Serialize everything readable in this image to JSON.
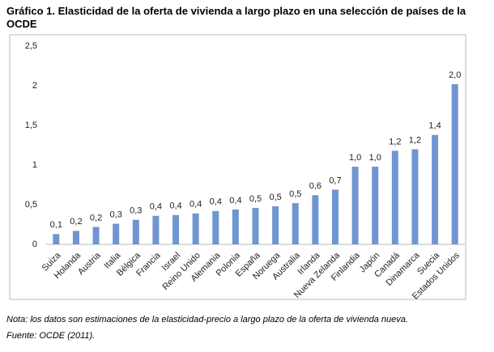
{
  "chart_data": {
    "type": "bar",
    "title": "Gráfico 1. Elasticidad de la oferta de vivienda a largo plazo en una selección de países de la OCDE",
    "categories": [
      "Suiza",
      "Holanda",
      "Austria",
      "Italia",
      "Bélgica",
      "Francia",
      "Israel",
      "Reino Unido",
      "Alemania",
      "Polonia",
      "España",
      "Noruega",
      "Australia",
      "Irlanda",
      "Nueva Zelanda",
      "Finlandia",
      "Japón",
      "Canadá",
      "Dinamarca",
      "Suecia",
      "Estados Unidos"
    ],
    "values": [
      0.13,
      0.17,
      0.22,
      0.26,
      0.31,
      0.36,
      0.37,
      0.39,
      0.42,
      0.44,
      0.46,
      0.48,
      0.52,
      0.62,
      0.69,
      0.98,
      0.98,
      1.18,
      1.2,
      1.38,
      2.02
    ],
    "value_labels": [
      "0,1",
      "0,2",
      "0,2",
      "0,3",
      "0,3",
      "0,4",
      "0,4",
      "0,4",
      "0,4",
      "0,4",
      "0,5",
      "0,5",
      "0,5",
      "0,6",
      "0,7",
      "1,0",
      "1,0",
      "1,2",
      "1,2",
      "1,4",
      "2,0"
    ],
    "color": "#6f96d1",
    "ylim": [
      0,
      2.5
    ],
    "yticks": [
      0,
      {
        "value": 0.5,
        "label": "0,5"
      },
      1,
      {
        "value": 1.5,
        "label": "1,5"
      },
      2,
      {
        "value": 2.5,
        "label": "2,5"
      }
    ],
    "grid": false,
    "note": "Nota: los datos son estimaciones de la elasticidad-precio a largo plazo de la oferta de vivienda nueva.",
    "source": "Fuente: OCDE (2011)."
  }
}
